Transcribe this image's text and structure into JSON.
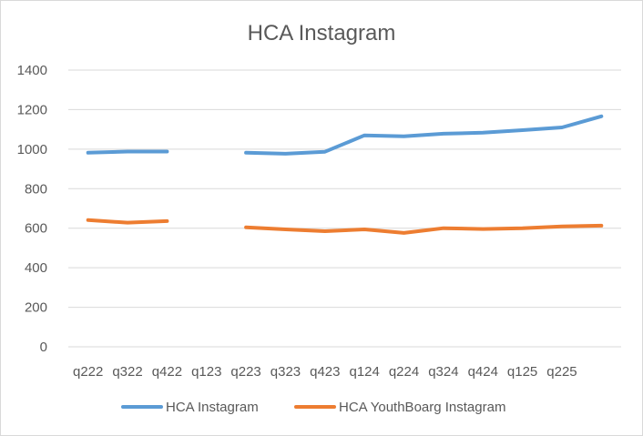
{
  "chart_data": {
    "type": "line",
    "title": "HCA Instagram",
    "xlabel": "",
    "ylabel": "",
    "ylim": [
      0,
      1400
    ],
    "yticks": [
      0,
      200,
      400,
      600,
      800,
      1000,
      1200,
      1400
    ],
    "grid": true,
    "legend": "bottom",
    "categories": [
      "q222",
      "q322",
      "q422",
      "q123",
      "q223",
      "q323",
      "q423",
      "q124",
      "q224",
      "q324",
      "q424",
      "q125",
      "q225",
      ""
    ],
    "series": [
      {
        "name": "HCA Instagram",
        "color": "#5b9bd5",
        "values": [
          982,
          988,
          988,
          null,
          982,
          977,
          987,
          1070,
          1065,
          1078,
          1083,
          1096,
          1110,
          1166
        ]
      },
      {
        "name": "HCA YouthBoarg Instagram",
        "color": "#ed7d31",
        "values": [
          641,
          628,
          636,
          null,
          604,
          594,
          585,
          594,
          576,
          600,
          596,
          600,
          609,
          613
        ]
      }
    ]
  }
}
